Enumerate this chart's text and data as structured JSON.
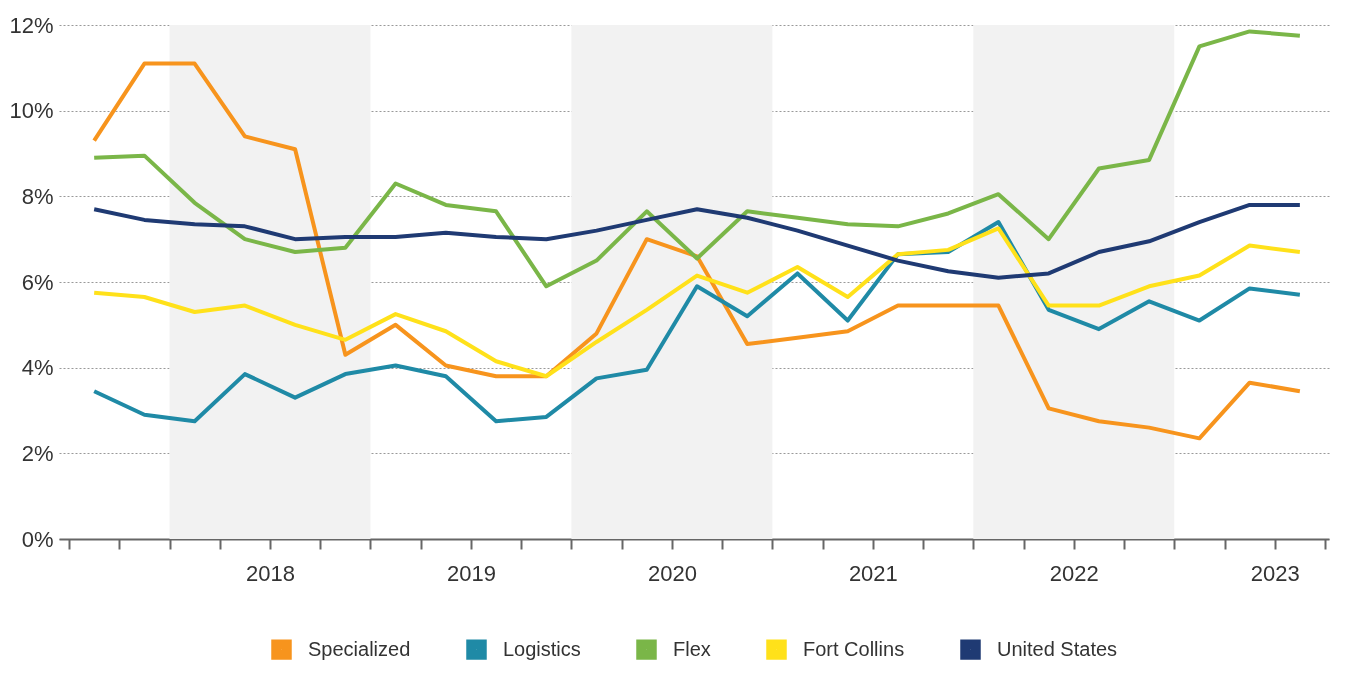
{
  "chart_data": {
    "type": "line",
    "x": [
      2017.625,
      2017.875,
      2018.125,
      2018.375,
      2018.625,
      2018.875,
      2019.125,
      2019.375,
      2019.625,
      2019.875,
      2020.125,
      2020.375,
      2020.625,
      2020.875,
      2021.125,
      2021.375,
      2021.625,
      2021.875,
      2022.125,
      2022.375,
      2022.625,
      2022.875,
      2023.125,
      2023.375,
      2023.625
    ],
    "series": [
      {
        "name": "Specialized",
        "color": "#f7941d",
        "values": [
          9.3,
          11.1,
          11.1,
          9.4,
          9.1,
          4.3,
          5.0,
          4.05,
          3.8,
          3.8,
          4.8,
          7.0,
          6.6,
          4.55,
          4.7,
          4.85,
          5.45,
          5.45,
          5.45,
          3.05,
          2.75,
          2.6,
          2.35,
          3.65,
          3.45
        ]
      },
      {
        "name": "Logistics",
        "color": "#1f8aa6",
        "values": [
          3.45,
          2.9,
          2.75,
          3.85,
          3.3,
          3.85,
          4.05,
          3.8,
          2.75,
          2.85,
          3.75,
          3.95,
          5.9,
          5.2,
          6.2,
          5.1,
          6.65,
          6.7,
          7.4,
          5.35,
          4.9,
          5.55,
          5.1,
          5.85,
          5.7
        ]
      },
      {
        "name": "Flex",
        "color": "#7ab648",
        "values": [
          8.9,
          8.95,
          7.85,
          7.0,
          6.7,
          6.8,
          8.3,
          7.8,
          7.65,
          5.9,
          6.5,
          7.65,
          6.55,
          7.65,
          7.5,
          7.35,
          7.3,
          7.6,
          8.05,
          7.0,
          8.65,
          8.85,
          11.5,
          11.85,
          11.75
        ]
      },
      {
        "name": "Fort Collins",
        "color": "#ffe11a",
        "values": [
          5.75,
          5.65,
          5.3,
          5.45,
          5.0,
          4.65,
          5.25,
          4.85,
          4.15,
          3.8,
          4.6,
          5.35,
          6.15,
          5.75,
          6.35,
          5.65,
          6.65,
          6.75,
          7.25,
          5.45,
          5.45,
          5.9,
          6.15,
          6.85,
          6.7
        ]
      },
      {
        "name": "United States",
        "color": "#1f3a73",
        "values": [
          7.7,
          7.45,
          7.35,
          7.3,
          7.0,
          7.05,
          7.05,
          7.15,
          7.05,
          7.0,
          7.2,
          7.45,
          7.7,
          7.5,
          7.2,
          6.85,
          6.5,
          6.25,
          6.1,
          6.2,
          6.7,
          6.95,
          7.4,
          7.8,
          7.8
        ]
      }
    ],
    "xlim": [
      2017.45,
      2023.77
    ],
    "xticks": [
      {
        "value": 2017.5,
        "label": null
      },
      {
        "value": 2017.75,
        "label": null
      },
      {
        "value": 2018,
        "label": null
      },
      {
        "value": 2018.25,
        "label": null
      },
      {
        "value": 2018.5,
        "label": "2018"
      },
      {
        "value": 2018.75,
        "label": null
      },
      {
        "value": 2019,
        "label": null
      },
      {
        "value": 2019.25,
        "label": null
      },
      {
        "value": 2019.5,
        "label": "2019"
      },
      {
        "value": 2019.75,
        "label": null
      },
      {
        "value": 2020,
        "label": null
      },
      {
        "value": 2020.25,
        "label": null
      },
      {
        "value": 2020.5,
        "label": "2020"
      },
      {
        "value": 2020.75,
        "label": null
      },
      {
        "value": 2021,
        "label": null
      },
      {
        "value": 2021.25,
        "label": null
      },
      {
        "value": 2021.5,
        "label": "2021"
      },
      {
        "value": 2021.75,
        "label": null
      },
      {
        "value": 2022,
        "label": null
      },
      {
        "value": 2022.25,
        "label": null
      },
      {
        "value": 2022.5,
        "label": "2022"
      },
      {
        "value": 2022.75,
        "label": null
      },
      {
        "value": 2023,
        "label": null
      },
      {
        "value": 2023.25,
        "label": null
      },
      {
        "value": 2023.5,
        "label": "2023"
      },
      {
        "value": 2023.75,
        "label": null
      }
    ],
    "ylim": [
      0,
      12
    ],
    "yticks": [
      {
        "value": 0,
        "label": "0%"
      },
      {
        "value": 2,
        "label": "2%"
      },
      {
        "value": 4,
        "label": "4%"
      },
      {
        "value": 6,
        "label": "6%"
      },
      {
        "value": 8,
        "label": "8%"
      },
      {
        "value": 10,
        "label": "10%"
      },
      {
        "value": 12,
        "label": "12%"
      }
    ],
    "bands": [
      {
        "axis": "x",
        "from": 2018,
        "to": 2019,
        "color": "#f2f2f2"
      },
      {
        "axis": "x",
        "from": 2020,
        "to": 2021,
        "color": "#f2f2f2"
      },
      {
        "axis": "x",
        "from": 2022,
        "to": 2023,
        "color": "#f2f2f2"
      }
    ],
    "grid": "y",
    "legend": "bottom",
    "marker": "none",
    "line_style": "solid"
  }
}
